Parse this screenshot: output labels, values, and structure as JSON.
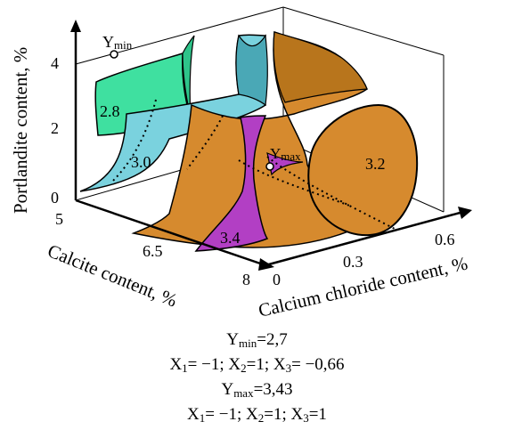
{
  "chart_data": {
    "type": "3d-surface",
    "axes": {
      "x": {
        "label": "Calcium chloride content, %",
        "ticks": [
          "0",
          "0.3",
          "0.6"
        ]
      },
      "y": {
        "label": "Calcite content, %",
        "ticks": [
          "5",
          "6.5",
          "8"
        ]
      },
      "z": {
        "label": "Portlandite content, %",
        "ticks": [
          "0",
          "2",
          "4"
        ]
      }
    },
    "iso_surfaces": [
      {
        "value": "2.8",
        "color": "#3fe0a0"
      },
      {
        "value": "3.0",
        "color": "#7ad2de"
      },
      {
        "value": "3.2",
        "color": "#d68a2e"
      },
      {
        "value": "3.4",
        "color": "#b23fc4"
      }
    ],
    "points": {
      "ymin": {
        "label": "Y",
        "sub": "min"
      },
      "ymax": {
        "label": "Y",
        "sub": "max"
      }
    }
  },
  "caption": {
    "line1": {
      "name": "Y",
      "sub": "min",
      "value": "=2,7"
    },
    "line2": {
      "x1n": "X",
      "x1s": "1",
      "x1v": "= −1; ",
      "x2n": "X",
      "x2s": "2",
      "x2v": "=1; ",
      "x3n": "X",
      "x3s": "3",
      "x3v": "= −0,66"
    },
    "line3": {
      "name": "Y",
      "sub": "max",
      "value": "=3,43"
    },
    "line4": {
      "x1n": "X",
      "x1s": "1",
      "x1v": "= −1; ",
      "x2n": "X",
      "x2s": "2",
      "x2v": "=1; ",
      "x3n": "X",
      "x3s": "3",
      "x3v": "=1"
    }
  }
}
